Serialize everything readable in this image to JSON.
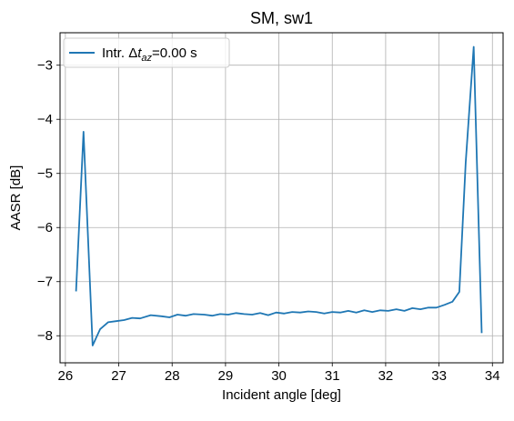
{
  "chart_data": {
    "type": "line",
    "title": "SM, sw1",
    "xlabel": "Incident angle [deg]",
    "ylabel": "AASR [dB]",
    "xlim": [
      25.9,
      34.2
    ],
    "ylim": [
      -8.5,
      -2.4
    ],
    "xticks": [
      26,
      27,
      28,
      29,
      30,
      31,
      32,
      33,
      34
    ],
    "yticks": [
      -8,
      -7,
      -6,
      -5,
      -4,
      -3
    ],
    "xtick_labels": [
      "26",
      "27",
      "28",
      "29",
      "30",
      "31",
      "32",
      "33",
      "34"
    ],
    "ytick_labels": [
      "−8",
      "−7",
      "−6",
      "−5",
      "−4",
      "−3"
    ],
    "grid": true,
    "legend_position": "top-left",
    "series": [
      {
        "legend_prefix": "Intr. ",
        "legend_delta": "Δ",
        "legend_t": "t",
        "legend_sub": "az",
        "legend_suffix": "=0.00 s",
        "color": "#1f77b4",
        "x": [
          26.2,
          26.34,
          26.51,
          26.65,
          26.8,
          26.95,
          27.1,
          27.25,
          27.4,
          27.6,
          27.8,
          27.95,
          28.1,
          28.25,
          28.4,
          28.6,
          28.75,
          28.9,
          29.05,
          29.2,
          29.35,
          29.5,
          29.65,
          29.8,
          29.95,
          30.1,
          30.25,
          30.4,
          30.55,
          30.7,
          30.85,
          31.0,
          31.15,
          31.3,
          31.45,
          31.6,
          31.75,
          31.9,
          32.05,
          32.2,
          32.35,
          32.5,
          32.65,
          32.8,
          32.95,
          33.1,
          33.25,
          33.38,
          33.5,
          33.65,
          33.8
        ],
        "y": [
          -7.18,
          -4.23,
          -8.18,
          -7.88,
          -7.75,
          -7.73,
          -7.71,
          -7.67,
          -7.68,
          -7.62,
          -7.64,
          -7.66,
          -7.61,
          -7.63,
          -7.6,
          -7.61,
          -7.63,
          -7.6,
          -7.61,
          -7.58,
          -7.6,
          -7.61,
          -7.58,
          -7.62,
          -7.57,
          -7.59,
          -7.56,
          -7.57,
          -7.55,
          -7.56,
          -7.59,
          -7.56,
          -7.57,
          -7.54,
          -7.57,
          -7.53,
          -7.56,
          -7.53,
          -7.54,
          -7.51,
          -7.54,
          -7.49,
          -7.51,
          -7.48,
          -7.48,
          -7.43,
          -7.37,
          -7.19,
          -4.8,
          -2.66,
          -7.95
        ]
      }
    ]
  }
}
